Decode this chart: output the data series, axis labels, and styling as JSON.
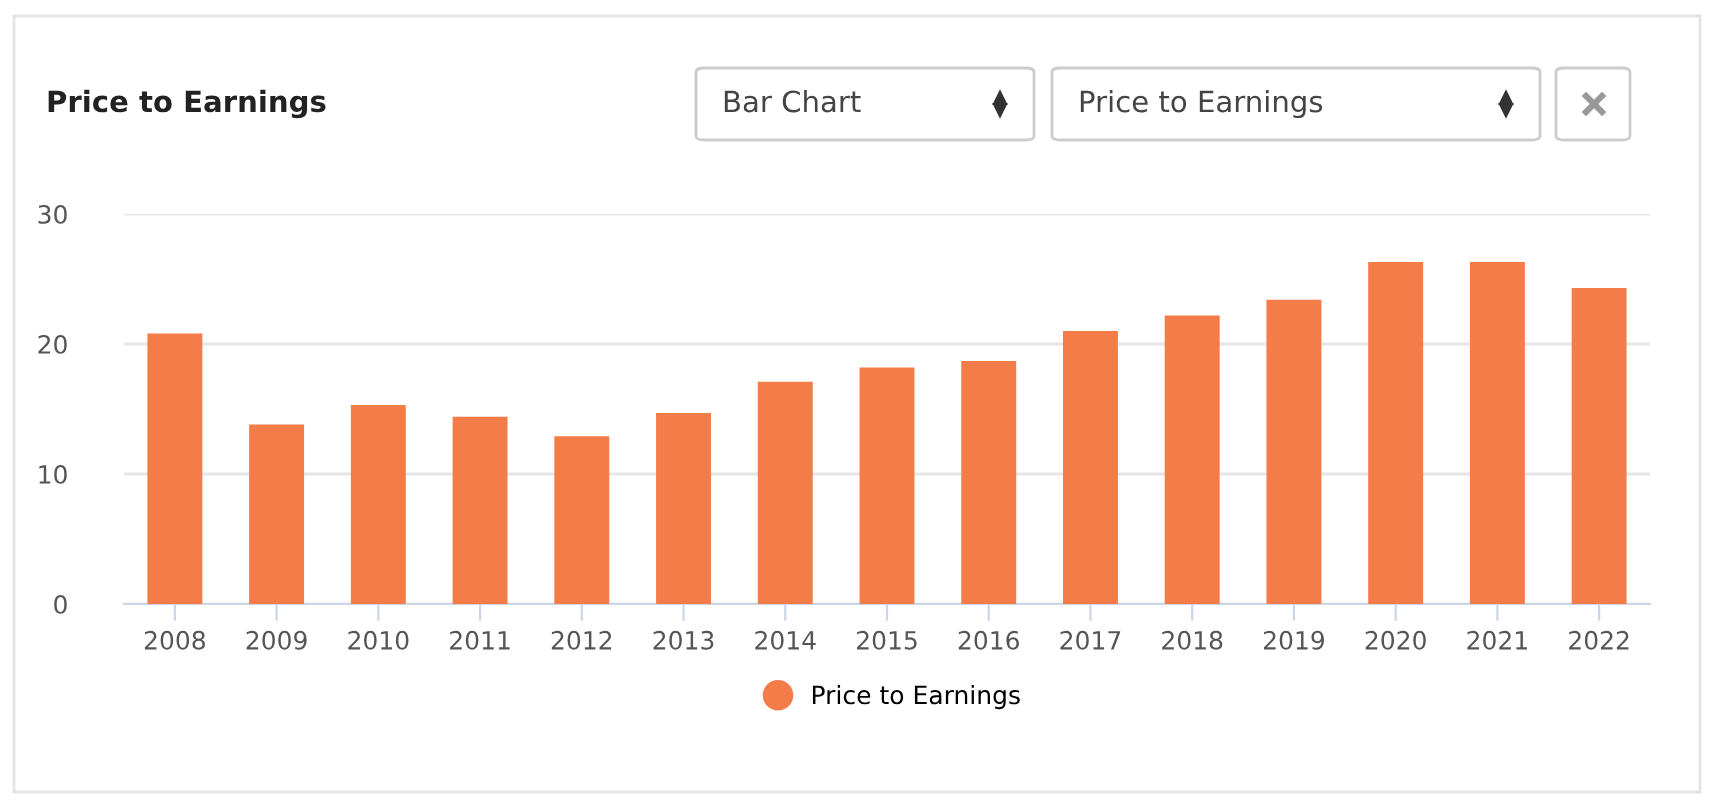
{
  "chart_data": {
    "type": "bar",
    "title": "Price to Earnings",
    "annotations": [
      "Bar Chart",
      "Price to Earnings"
    ],
    "categories": [
      "2008",
      "2009",
      "2010",
      "2011",
      "2012",
      "2013",
      "2014",
      "2015",
      "2016",
      "2017",
      "2018",
      "2019",
      "2020",
      "2021",
      "2022"
    ],
    "series": [
      {
        "name": "Price to Earnings",
        "color": "#f47c48",
        "values": [
          20.8,
          13.8,
          15.3,
          14.4,
          12.9,
          14.7,
          17.1,
          18.2,
          18.7,
          21.0,
          22.2,
          23.4,
          26.3,
          26.3,
          24.3
        ]
      }
    ],
    "ylim": [
      0,
      30
    ],
    "yticks": [
      0,
      10,
      20,
      30
    ],
    "grid": "y",
    "legend": "bottom"
  }
}
